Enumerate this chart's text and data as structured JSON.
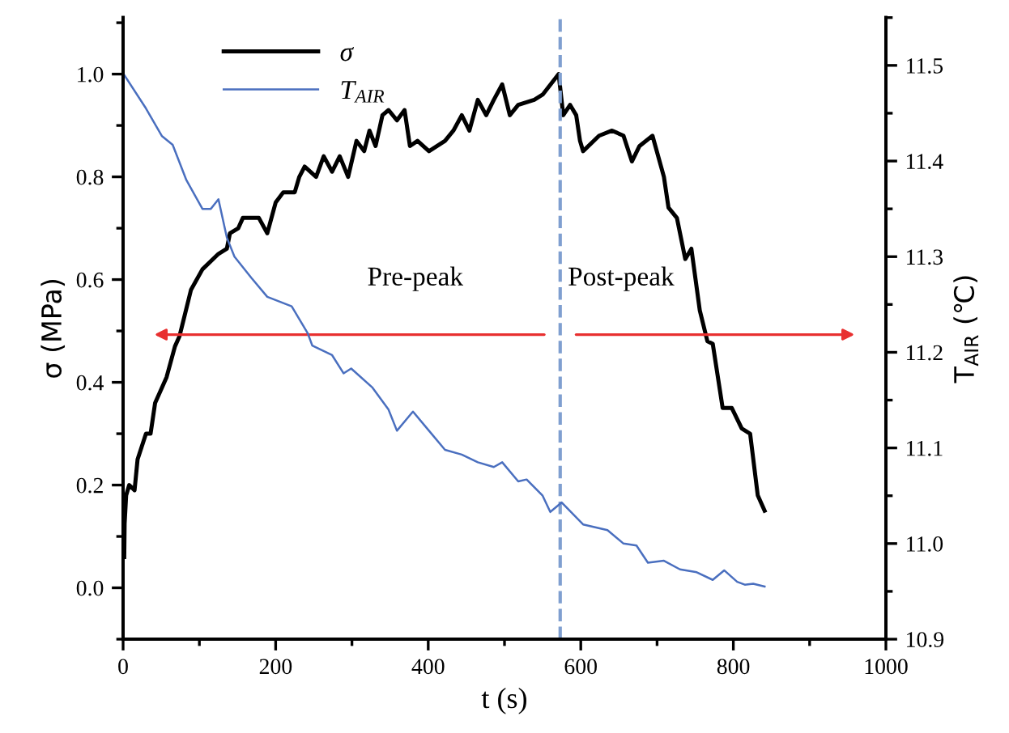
{
  "chart_data": {
    "type": "line",
    "xlabel": "t (s)",
    "ylabel": "σ (MPa)",
    "y2label": "T$_{AIR}$ (℃)",
    "xlim": [
      0,
      1000
    ],
    "xticks": [
      0,
      200,
      400,
      600,
      800,
      1000
    ],
    "ylim": [
      -0.1,
      1.11
    ],
    "yticks": [
      {
        "value": 0,
        "label": "0.0"
      },
      0.2,
      0.4,
      0.6,
      0.8,
      {
        "value": 1,
        "label": "1.0"
      }
    ],
    "y2lim": [
      10.9,
      11.55
    ],
    "y2ticks": [
      10.9,
      {
        "value": 11,
        "label": "11.0"
      },
      11.1,
      11.2,
      11.3,
      11.4,
      11.5
    ],
    "legend": "top left",
    "grid": false,
    "marker": "none",
    "line_style": "solid",
    "series": [
      {
        "name": "σ",
        "color": "#000000",
        "x": [
          1.5,
          2,
          4,
          8,
          15,
          19,
          30,
          36,
          42,
          51,
          57,
          68,
          74,
          79,
          89,
          104,
          125,
          136,
          140,
          151,
          157,
          178,
          189,
          200,
          210,
          225,
          231,
          238,
          253,
          263,
          274,
          284,
          295,
          306,
          316,
          323,
          331,
          340,
          348,
          359,
          369,
          376,
          386,
          401,
          422,
          433,
          444,
          454,
          465,
          476,
          486,
          497,
          507,
          518,
          539,
          550,
          571,
          577,
          586,
          594,
          599,
          603,
          624,
          641,
          656,
          667,
          677,
          694,
          709,
          715,
          726,
          737,
          745,
          756,
          766,
          773,
          786,
          798,
          811,
          822,
          832,
          841
        ],
        "values": [
          0.06,
          0.125,
          0.18,
          0.2,
          0.19,
          0.25,
          0.3,
          0.3,
          0.36,
          0.39,
          0.41,
          0.47,
          0.49,
          0.52,
          0.58,
          0.62,
          0.65,
          0.66,
          0.69,
          0.7,
          0.72,
          0.72,
          0.69,
          0.75,
          0.77,
          0.77,
          0.8,
          0.82,
          0.8,
          0.84,
          0.81,
          0.84,
          0.8,
          0.87,
          0.85,
          0.89,
          0.86,
          0.92,
          0.93,
          0.91,
          0.93,
          0.86,
          0.87,
          0.85,
          0.87,
          0.89,
          0.92,
          0.89,
          0.95,
          0.92,
          0.95,
          0.98,
          0.92,
          0.94,
          0.95,
          0.96,
          1.0,
          0.92,
          0.94,
          0.92,
          0.87,
          0.85,
          0.88,
          0.89,
          0.88,
          0.83,
          0.86,
          0.88,
          0.8,
          0.74,
          0.72,
          0.64,
          0.66,
          0.54,
          0.48,
          0.475,
          0.35,
          0.35,
          0.31,
          0.3,
          0.18,
          0.15
        ]
      },
      {
        "name": "T$_{AIR}$",
        "color": "#4a6fbf",
        "axis": "y2",
        "x": [
          1.5,
          30,
          51,
          65,
          83,
          104,
          115,
          125,
          136,
          146,
          168,
          189,
          221,
          242,
          248,
          274,
          289,
          299,
          327,
          348,
          359,
          380,
          401,
          422,
          444,
          465,
          486,
          497,
          518,
          529,
          550,
          560,
          575,
          603,
          635,
          656,
          673,
          688,
          709,
          730,
          752,
          773,
          788,
          805,
          815,
          826,
          841
        ],
        "values": [
          11.49,
          11.455,
          11.426,
          11.417,
          11.38,
          11.35,
          11.35,
          11.36,
          11.32,
          11.3,
          11.278,
          11.258,
          11.248,
          11.22,
          11.207,
          11.197,
          11.178,
          11.183,
          11.163,
          11.14,
          11.118,
          11.138,
          11.118,
          11.098,
          11.093,
          11.085,
          11.08,
          11.085,
          11.065,
          11.067,
          11.05,
          11.033,
          11.043,
          11.02,
          11.014,
          11.0,
          10.998,
          10.98,
          10.982,
          10.973,
          10.97,
          10.962,
          10.972,
          10.96,
          10.957,
          10.958,
          10.955
        ]
      }
    ],
    "ref_lines": [
      {
        "axis": "x",
        "value": 573,
        "color": "#7f9fd0",
        "line_style": "dashed"
      }
    ],
    "annotations": [
      "Pre-peak",
      "Post-peak"
    ]
  }
}
